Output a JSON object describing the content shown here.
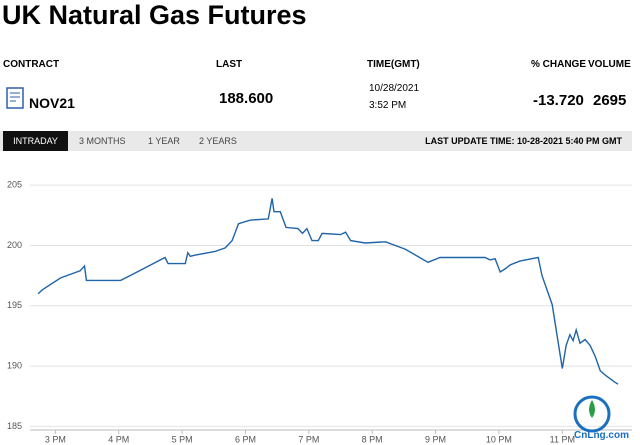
{
  "header": {
    "title": "UK Natural Gas Futures"
  },
  "table": {
    "columns": [
      "CONTRACT",
      "LAST",
      "TIME(GMT)",
      "% CHANGE",
      "VOLUME"
    ],
    "row": {
      "contract": "NOV21",
      "last": "188.600",
      "date": "10/28/2021",
      "time": "3:52 PM",
      "change": "-13.720",
      "volume": "2695"
    }
  },
  "tabs": [
    "INTRADAY",
    "3 MONTHS",
    "1 YEAR",
    "2 YEARS"
  ],
  "last_update": "LAST UPDATE TIME: 10-28-2021 5:40 PM GMT",
  "watermark": "CnLng.com",
  "chart_data": {
    "type": "line",
    "color": "#2064a8",
    "grid": true,
    "x": [
      14.73,
      14.79,
      15.08,
      15.39,
      15.46,
      15.49,
      16.03,
      16.18,
      16.73,
      16.78,
      17.05,
      17.09,
      17.13,
      17.21,
      17.52,
      17.68,
      17.79,
      17.89,
      18.08,
      18.36,
      18.42,
      18.45,
      18.55,
      18.64,
      18.83,
      18.9,
      18.97,
      19.05,
      19.15,
      19.21,
      19.5,
      19.58,
      19.66,
      19.89,
      20.21,
      20.52,
      20.88,
      21.07,
      21.78,
      21.86,
      21.94,
      22.02,
      22.11,
      22.18,
      22.33,
      22.62,
      22.68,
      22.84,
      23.0,
      23.06,
      23.12,
      23.17,
      23.22,
      23.28,
      23.36,
      23.44,
      23.52,
      23.6,
      23.69,
      23.82,
      23.88
    ],
    "values": [
      196.0,
      196.3,
      197.3,
      197.9,
      198.3,
      197.1,
      197.1,
      197.5,
      199.0,
      198.5,
      198.5,
      199.4,
      199.1,
      199.2,
      199.5,
      199.8,
      200.4,
      201.8,
      202.1,
      202.2,
      203.9,
      202.8,
      202.8,
      201.5,
      201.4,
      201.0,
      201.4,
      200.4,
      200.4,
      201.0,
      200.9,
      201.1,
      200.4,
      200.2,
      200.3,
      199.7,
      198.6,
      199.0,
      199.0,
      198.8,
      198.9,
      197.8,
      198.1,
      198.4,
      198.7,
      199.0,
      197.5,
      195.1,
      189.8,
      191.7,
      192.6,
      192.1,
      193.0,
      191.9,
      192.2,
      191.7,
      190.8,
      189.6,
      189.2,
      188.7,
      188.5
    ],
    "xlim": [
      14.6,
      24.1
    ],
    "xticks": [
      {
        "value": 15,
        "label": "3 PM"
      },
      {
        "value": 16,
        "label": "4 PM"
      },
      {
        "value": 17,
        "label": "5 PM"
      },
      {
        "value": 18,
        "label": "6 PM"
      },
      {
        "value": 19,
        "label": "7 PM"
      },
      {
        "value": 20,
        "label": "8 PM"
      },
      {
        "value": 21,
        "label": "9 PM"
      },
      {
        "value": 22,
        "label": "10 PM"
      },
      {
        "value": 23,
        "label": "11 PM"
      }
    ],
    "ylim": [
      184.7,
      207.5
    ],
    "yticks": [
      185,
      190,
      195,
      200,
      205
    ]
  }
}
